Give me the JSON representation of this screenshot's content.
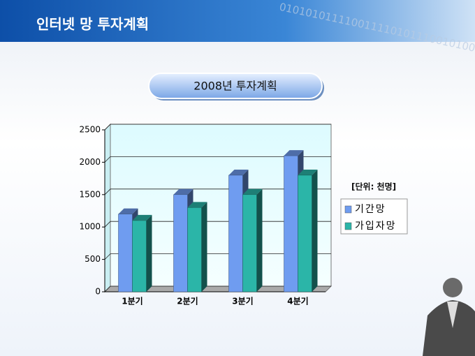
{
  "header": {
    "title": "인터넷 망 투자계획",
    "decoration": "0101010111100111101011100101000"
  },
  "chart_data": {
    "type": "bar3d",
    "title": "2008년 투자계획",
    "unit_note": "[단위: 천명]",
    "categories": [
      "1분기",
      "2분기",
      "3분기",
      "4분기"
    ],
    "series": [
      {
        "name": "기간망",
        "color": "#6f9cf0",
        "values": [
          1200,
          1500,
          1800,
          2100
        ]
      },
      {
        "name": "가입자망",
        "color": "#2bb5a8",
        "values": [
          1100,
          1300,
          1500,
          1800
        ]
      }
    ],
    "ylim": [
      0,
      2500
    ],
    "yticks": [
      0,
      500,
      1000,
      1500,
      2000,
      2500
    ],
    "grid": true,
    "legend": "right"
  }
}
